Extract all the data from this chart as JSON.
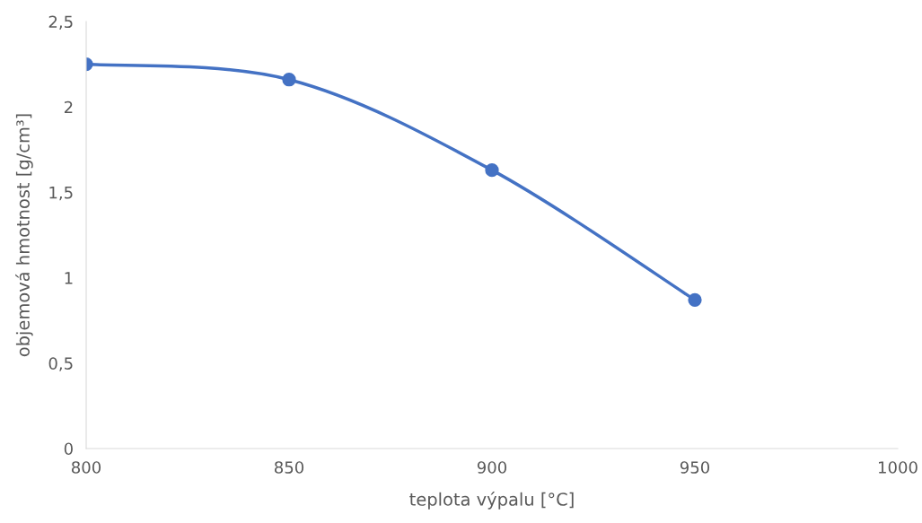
{
  "chart_data": {
    "type": "line",
    "xlabel": "teplota výpalu [°C]",
    "ylabel": "objemová hmotnost [g/cm³]",
    "x": [
      800,
      850,
      900,
      950
    ],
    "series": [
      {
        "color": "#4472c4",
        "values": [
          2.25,
          2.16,
          1.63,
          0.87
        ]
      }
    ],
    "marker": "circle",
    "line_style": "solid",
    "grid": false,
    "xlim": [
      800,
      1000
    ],
    "xticks": [
      800,
      850,
      900,
      950,
      1000
    ],
    "ylim": [
      0,
      2.5
    ],
    "yticks": [
      0,
      {
        "value": 0.5,
        "label": "0,5"
      },
      1,
      {
        "value": 1.5,
        "label": "1,5"
      },
      2,
      {
        "value": 2.5,
        "label": "2,5"
      }
    ]
  }
}
